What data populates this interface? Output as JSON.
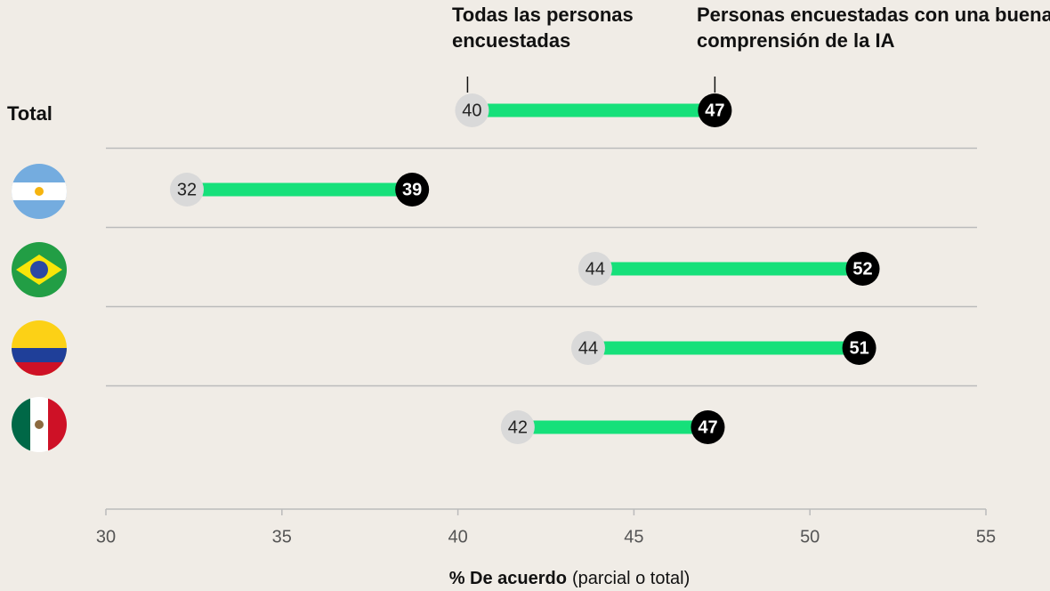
{
  "chart_data": {
    "type": "dumbbell",
    "categories": [
      "Total",
      null,
      null,
      null,
      null
    ],
    "series": [
      {
        "name": "Todas las personas encuestadas",
        "color": "#d9d9d9",
        "values": [
          40.4,
          32.3,
          43.9,
          43.7,
          41.7
        ],
        "value_labels": [
          "40",
          "32",
          "44",
          "44",
          "42"
        ]
      },
      {
        "name": "Personas encuestadas con una buena comprensión de la IA",
        "color": "#000000",
        "values": [
          47.3,
          38.7,
          51.5,
          51.4,
          47.1
        ],
        "value_labels": [
          "47",
          "39",
          "52",
          "51",
          "47"
        ]
      }
    ],
    "bar_color": "#16e07a",
    "xlim": [
      30,
      55
    ],
    "xticks": [
      30,
      35,
      40,
      45,
      50,
      55
    ],
    "x_label": {
      "bold": "% De acuerdo",
      "rest": "(parcial o total)"
    }
  }
}
